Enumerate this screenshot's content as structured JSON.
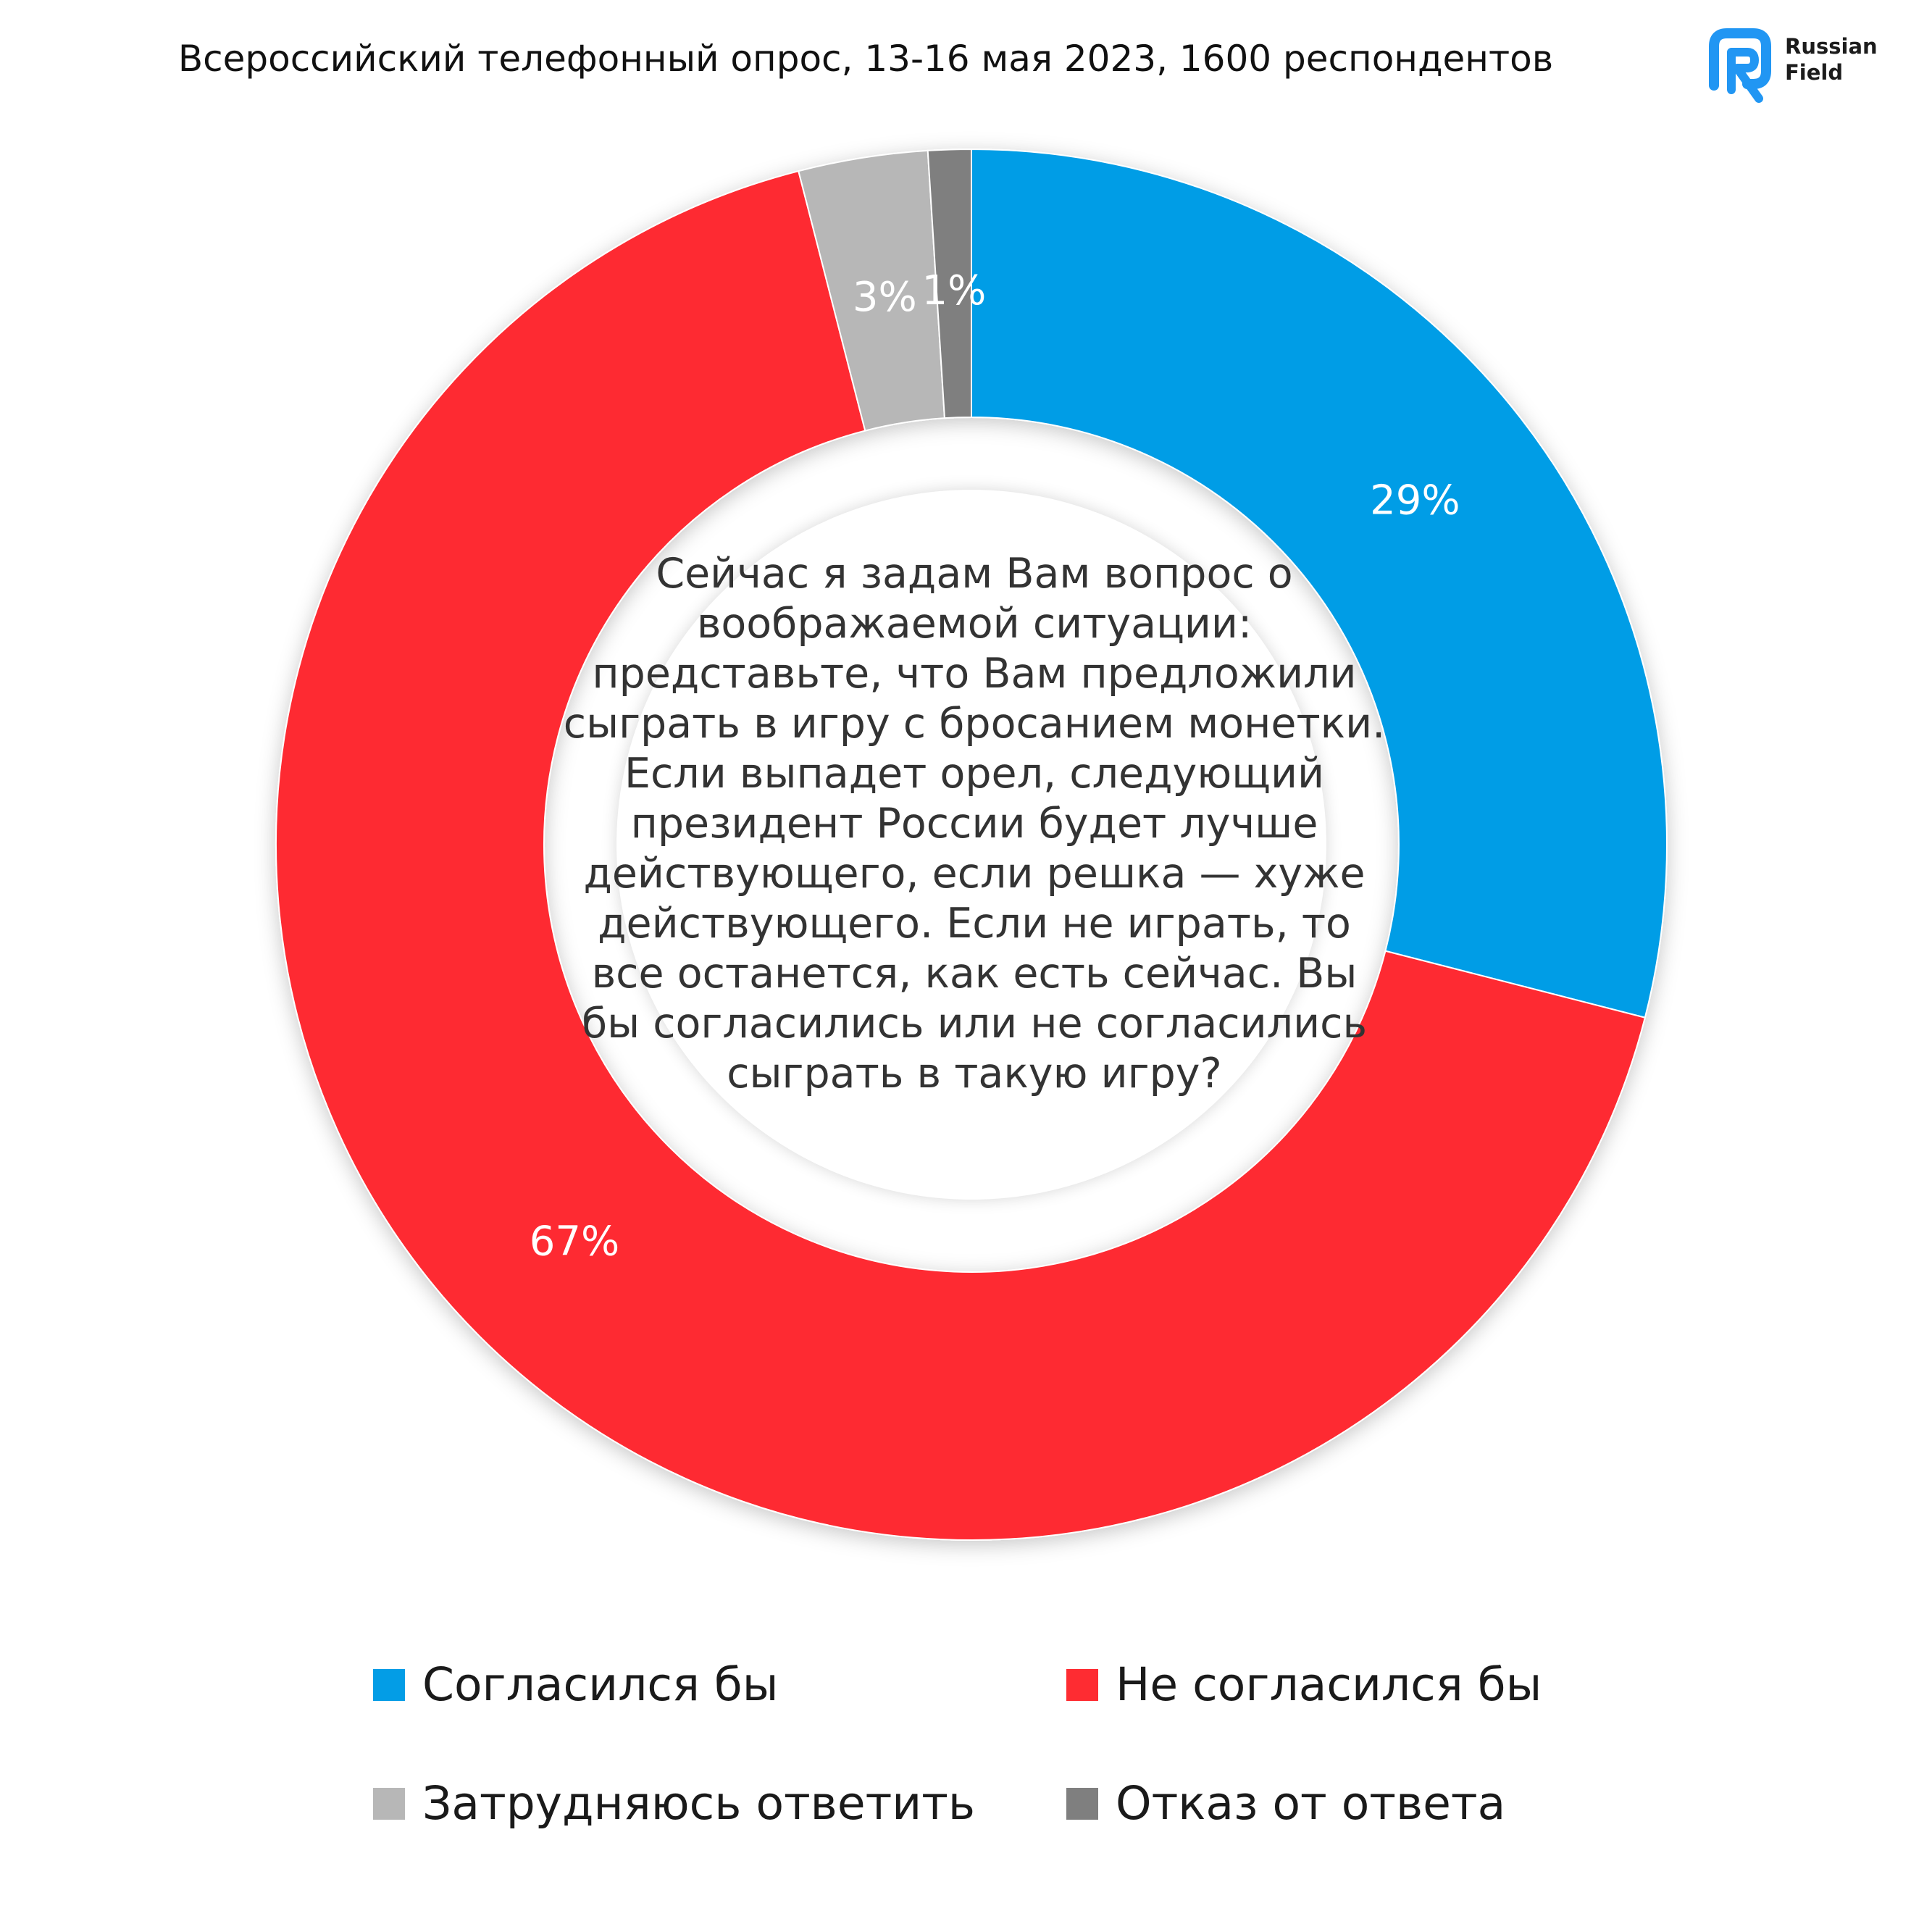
{
  "header": {
    "subtitle": "Всероссийский телефонный опрос, 13-16 мая 2023, 1600 респондентов",
    "logo_line1": "Russian",
    "logo_line2": "Field",
    "logo_icon": "russian-field-logo-icon",
    "logo_color": "#2196f3"
  },
  "chart_data": {
    "type": "pie",
    "donut": true,
    "question": "Сейчас я задам Вам вопрос о воображаемой ситуации: представьте, что Вам предложили сыграть в игру с бросанием монетки. Если выпадет орел, следующий президент России будет лучше действующего, если решка — хуже действующего. Если не играть, то все останется, как есть сейчас. Вы бы согласились или не согласились сыграть в такую игру?",
    "categories": [
      "Согласился бы",
      "Не согласился бы",
      "Затрудняюсь ответить",
      "Отказ от ответа"
    ],
    "values": [
      29,
      67,
      3,
      1
    ],
    "labels": [
      "29%",
      "67%",
      "3%",
      "1%"
    ],
    "colors": [
      "#039de6",
      "#fe2c32",
      "#b7b7b7",
      "#7f7f7f"
    ],
    "start": "12 o'clock, clockwise",
    "legend_position": "bottom"
  }
}
